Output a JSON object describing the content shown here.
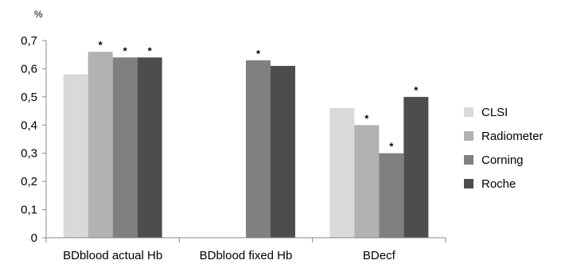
{
  "chart_data": {
    "type": "bar",
    "unit": "%",
    "categories": [
      "BDblood actual Hb",
      "BDblood fixed Hb",
      "BDecf"
    ],
    "series": [
      {
        "name": "CLSI",
        "color": "#d9d9d9",
        "values": [
          0.58,
          null,
          0.46
        ],
        "significant": [
          false,
          false,
          false
        ]
      },
      {
        "name": "Radiometer",
        "color": "#b2b2b2",
        "values": [
          0.66,
          null,
          0.4
        ],
        "significant": [
          true,
          false,
          true
        ]
      },
      {
        "name": "Corning",
        "color": "#808080",
        "values": [
          0.64,
          0.63,
          0.3
        ],
        "significant": [
          true,
          true,
          true
        ]
      },
      {
        "name": "Roche",
        "color": "#4d4d4d",
        "values": [
          0.64,
          0.61,
          0.5
        ],
        "significant": [
          true,
          false,
          true
        ]
      }
    ],
    "significance_marker": "*",
    "ylim": [
      0,
      0.7
    ],
    "y_ticks": [
      {
        "value": 0,
        "label": "0"
      },
      {
        "value": 0.1,
        "label": "0,1"
      },
      {
        "value": 0.2,
        "label": "0,2"
      },
      {
        "value": 0.3,
        "label": "0,3"
      },
      {
        "value": 0.4,
        "label": "0,4"
      },
      {
        "value": 0.5,
        "label": "0,5"
      },
      {
        "value": 0.6,
        "label": "0,6"
      },
      {
        "value": 0.7,
        "label": "0,7"
      }
    ],
    "grid": false,
    "legend_position": "right"
  }
}
